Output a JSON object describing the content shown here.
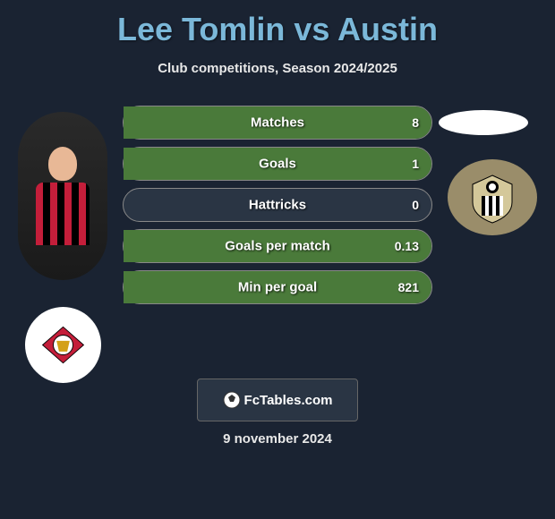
{
  "title": "Lee Tomlin vs Austin",
  "subtitle": "Club competitions, Season 2024/2025",
  "stats": [
    {
      "label": "Matches",
      "value_right": "8",
      "left_pct": 0,
      "right_pct": 100,
      "left_color": "#4a7a3a",
      "right_color": "#4a7a3a"
    },
    {
      "label": "Goals",
      "value_right": "1",
      "left_pct": 0,
      "right_pct": 100,
      "left_color": "#4a7a3a",
      "right_color": "#4a7a3a"
    },
    {
      "label": "Hattricks",
      "value_right": "0",
      "left_pct": 0,
      "right_pct": 0,
      "left_color": "#4a7a3a",
      "right_color": "#4a7a3a"
    },
    {
      "label": "Goals per match",
      "value_right": "0.13",
      "left_pct": 0,
      "right_pct": 100,
      "left_color": "#4a7a3a",
      "right_color": "#4a7a3a"
    },
    {
      "label": "Min per goal",
      "value_right": "821",
      "left_pct": 0,
      "right_pct": 100,
      "left_color": "#4a7a3a",
      "right_color": "#4a7a3a"
    }
  ],
  "footer": {
    "brand": "FcTables.com",
    "date": "9 november 2024"
  },
  "colors": {
    "title": "#7bb8d9",
    "background": "#1a2332",
    "bar_bg": "#2a3544"
  }
}
